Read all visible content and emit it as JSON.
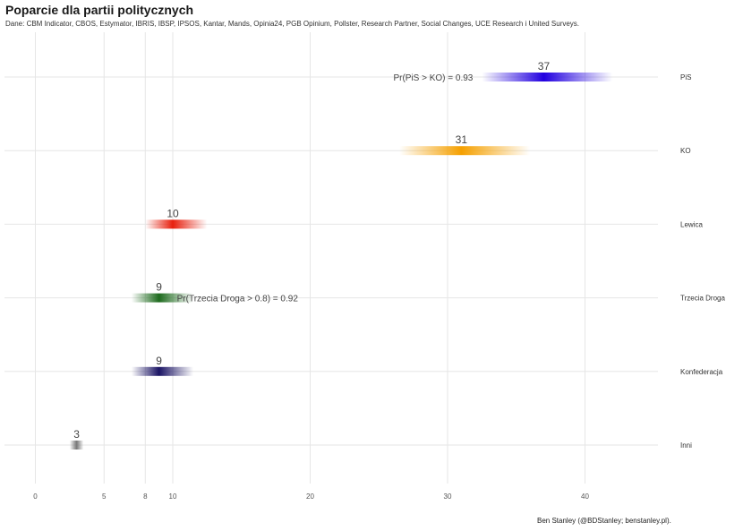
{
  "title": "Poparcie dla partii politycznych",
  "subtitle": "Dane: CBM Indicator, CBOS, Estymator, IBRIS, IBSP, IPSOS, Kantar, Mands, Opinia24, PGB Opinium, Pollster, Research Partner, Social Changes, UCE Research i United Surveys.",
  "caption": "Ben Stanley (@BDStanley; benstanley.pl).",
  "chart_data": {
    "type": "interval",
    "title": "Poparcie dla partii politycznych",
    "xlabel": "",
    "ylabel": "",
    "xlim": [
      -2,
      46
    ],
    "x_ticks": [
      0,
      5,
      8,
      10,
      20,
      30,
      40
    ],
    "grid": true,
    "series": [
      {
        "name": "PiS",
        "value": 37,
        "low": 32.5,
        "high": 42,
        "color": "#2200e0",
        "label": "37"
      },
      {
        "name": "KO",
        "value": 31,
        "low": 26.5,
        "high": 36,
        "color": "#f5a000",
        "label": "31"
      },
      {
        "name": "Lewica",
        "value": 10,
        "low": 8,
        "high": 12.5,
        "color": "#e8200e",
        "label": "10"
      },
      {
        "name": "Trzecia Droga",
        "value": 9,
        "low": 7,
        "high": 11.5,
        "color": "#1e6b1e",
        "label": "9"
      },
      {
        "name": "Konfederacja",
        "value": 9,
        "low": 7,
        "high": 11.5,
        "color": "#1b1464",
        "label": "9"
      },
      {
        "name": "Inni",
        "value": 3,
        "low": 2.5,
        "high": 3.5,
        "color": "#777777",
        "label": "3"
      }
    ],
    "annotations": [
      {
        "party": "PiS",
        "text": "Pr(PiS > KO)  =  0.93"
      },
      {
        "party": "Trzecia Droga",
        "text": "Pr(Trzecia Droga > 0.8)  =  0.92"
      }
    ]
  }
}
